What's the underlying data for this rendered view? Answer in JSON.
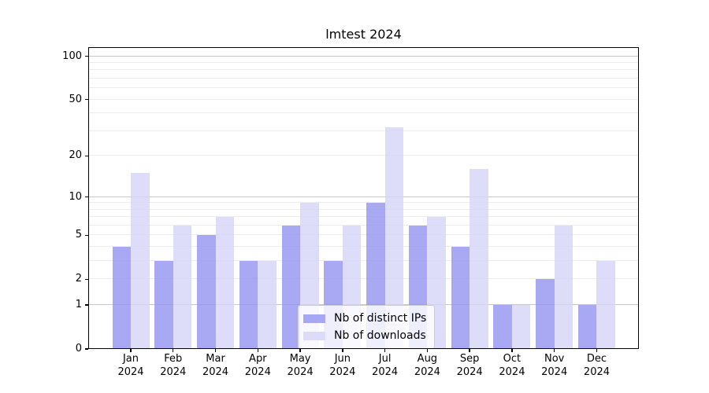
{
  "chart_data": {
    "type": "bar",
    "title": "lmtest 2024",
    "categories": [
      "Jan",
      "Feb",
      "Mar",
      "Apr",
      "May",
      "Jun",
      "Jul",
      "Aug",
      "Sep",
      "Oct",
      "Nov",
      "Dec"
    ],
    "category_year": "2024",
    "series": [
      {
        "name": "Nb of distinct IPs",
        "color": "#9292f0",
        "legend_color": "#a7a7f3",
        "opacity": 0.8,
        "values": [
          4,
          3,
          5,
          3,
          6,
          3,
          9,
          6,
          4,
          1,
          2,
          1
        ]
      },
      {
        "name": "Nb of downloads",
        "color": "#d4d4f7",
        "legend_color": "#dcdcf9",
        "opacity": 0.8,
        "values": [
          15,
          6,
          7,
          3,
          9,
          6,
          32,
          7,
          16,
          1,
          6,
          3
        ]
      }
    ],
    "y_ticks": [
      "0",
      "1",
      "2",
      "5",
      "10",
      "20",
      "50",
      "100"
    ],
    "y_tick_values": [
      0,
      1,
      2,
      5,
      10,
      20,
      50,
      100
    ],
    "y_scale": "log10(1+v)",
    "y_axis_max": 115,
    "major_grid_values": [
      1,
      10,
      100
    ],
    "minor_grid_values": [
      2,
      3,
      4,
      5,
      6,
      7,
      8,
      9,
      20,
      30,
      40,
      50,
      60,
      70,
      80,
      90
    ],
    "grid": true,
    "legend_position": "lower center",
    "xlabel": "",
    "ylabel": ""
  },
  "colors": {
    "background": "#ffffff",
    "axis_frame": "#000000",
    "major_grid": "#c7c7c7",
    "minor_grid": "#ededed",
    "legend_border": "#cccccc"
  }
}
